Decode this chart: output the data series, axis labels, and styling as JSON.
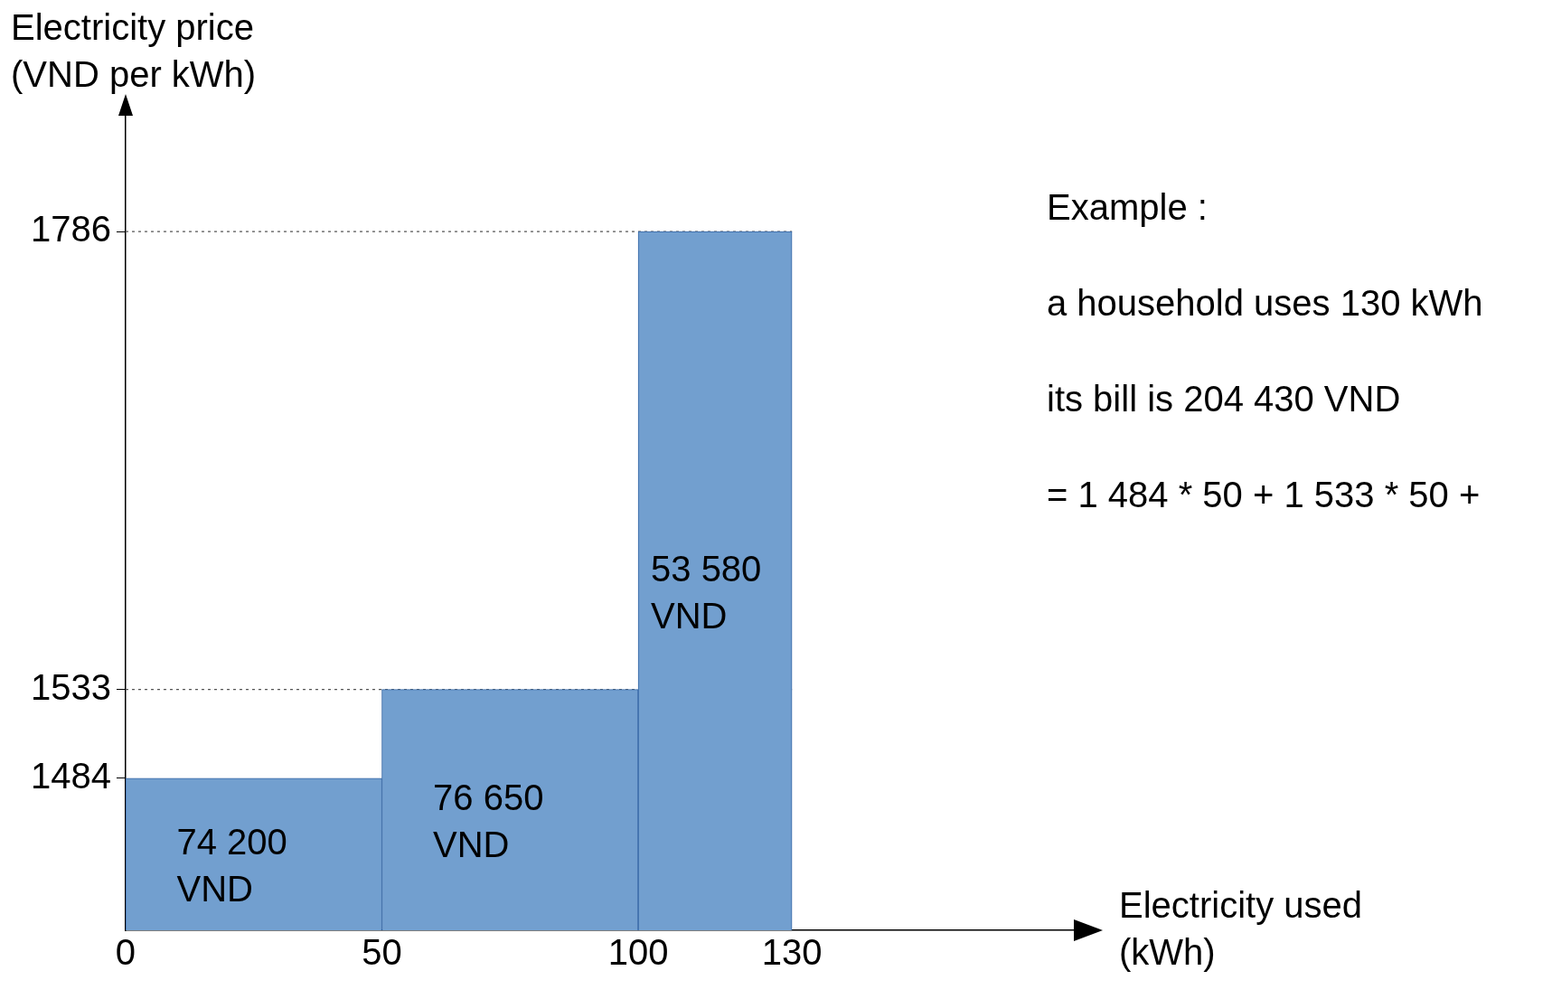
{
  "chart_data": {
    "type": "histogram",
    "xlabel": "Electricity used (kWh)",
    "ylabel": "Electricity price (VND per kWh)",
    "bins": [
      0,
      50,
      100,
      130
    ],
    "values": [
      1484,
      1533,
      1786
    ],
    "color": "#729fcf",
    "xlim": [
      0,
      185
    ],
    "xticks": [
      0,
      50,
      100,
      130
    ],
    "ylim": [
      1400,
      1850
    ],
    "yticks": [
      1484,
      1533,
      1786
    ],
    "ref_lines": [
      {
        "axis": "y",
        "value": 1533,
        "line_style": "dotted"
      },
      {
        "axis": "y",
        "value": 1786,
        "line_style": "dotted"
      }
    ],
    "annotations": [
      "74 200 VND",
      "76 650 VND",
      "53 580 VND",
      "Example :",
      "a household uses 130 kWh",
      "its bill is 204 430 VND",
      "= 1 484 * 50 + 1 533 * 50 +"
    ]
  }
}
